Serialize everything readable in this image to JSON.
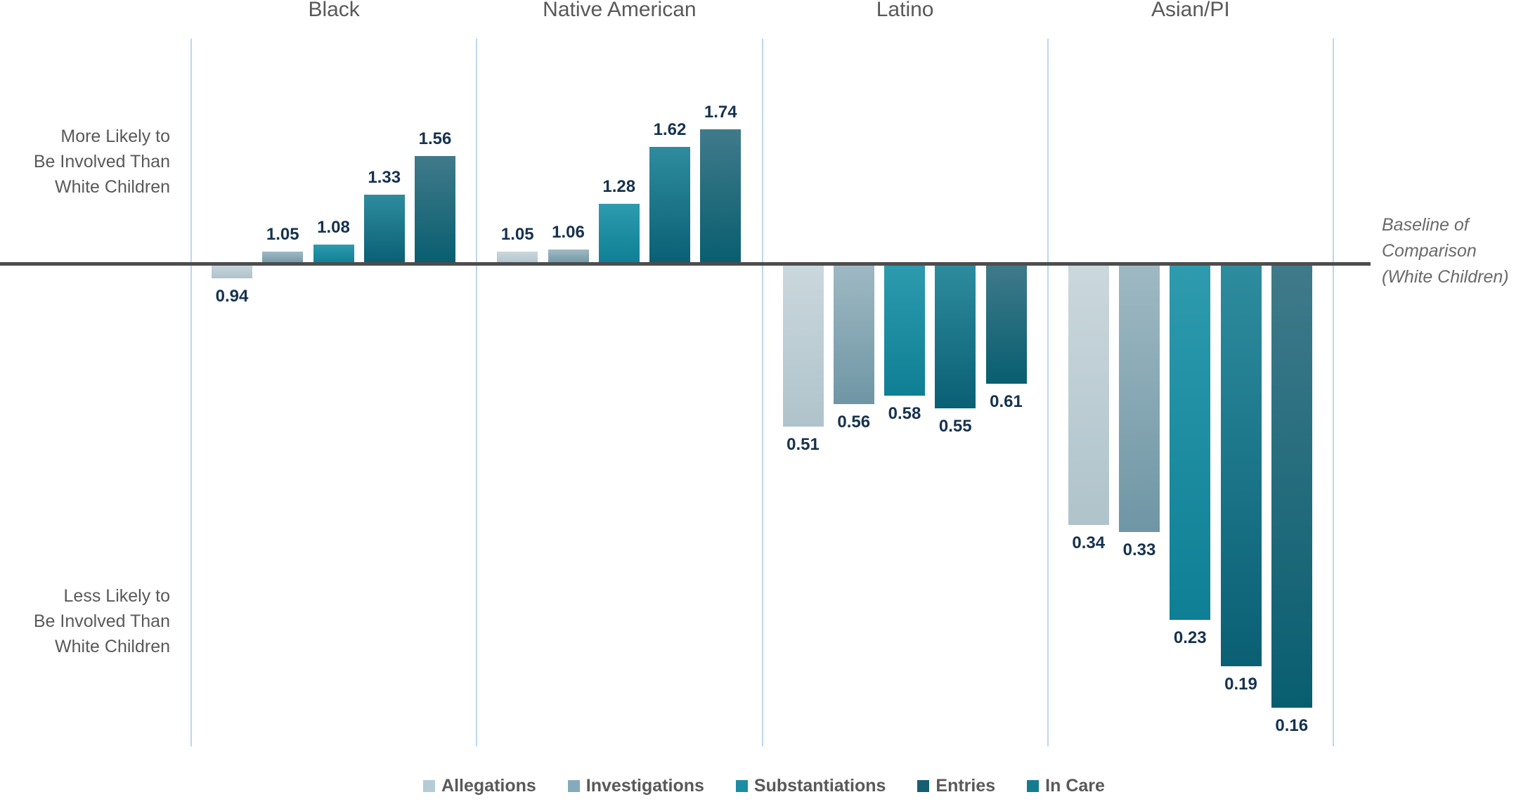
{
  "chart_data": {
    "type": "bar",
    "scale": "log-ratio",
    "baseline_value": 1.0,
    "groups": [
      "Black",
      "Native American",
      "Latino",
      "Asian/PI"
    ],
    "series": [
      {
        "name": "Allegations",
        "values": [
          0.94,
          1.05,
          0.51,
          0.34
        ],
        "gradient_top": "#CBD8DD",
        "gradient_bottom": "#AFC3CB",
        "legend_color": "#B3CCD5"
      },
      {
        "name": "Investigations",
        "values": [
          1.05,
          1.06,
          0.56,
          0.33
        ],
        "gradient_top": "#9FB9C3",
        "gradient_bottom": "#6F96A5",
        "legend_color": "#84ABB9"
      },
      {
        "name": "Substantiations",
        "values": [
          1.08,
          1.28,
          0.58,
          0.23
        ],
        "gradient_top": "#2E9BAE",
        "gradient_bottom": "#0E7F95",
        "legend_color": "#1C8CA3"
      },
      {
        "name": "Entries",
        "values": [
          1.33,
          1.62,
          0.55,
          0.19
        ],
        "gradient_top": "#2E8C9F",
        "gradient_bottom": "#0A5F73",
        "legend_color": "#175E72"
      },
      {
        "name": "In Care",
        "values": [
          1.56,
          1.74,
          0.61,
          0.16
        ],
        "gradient_top": "#407A8A",
        "gradient_bottom": "#085E70",
        "legend_color": "#147C91"
      }
    ],
    "value_label_decimals": 2,
    "legend_position": "bottom",
    "grid": "vertical-panel-separators",
    "annotations": {
      "more_likely": [
        "More Likely to",
        "Be Involved Than",
        "White Children"
      ],
      "less_likely": [
        "Less Likely to",
        "Be Involved Than",
        "White Children"
      ],
      "baseline_label": [
        "Baseline of",
        "Comparison",
        "(White Children)"
      ]
    }
  },
  "colors": {
    "value_label": "#16324F",
    "axis_text": "#595959",
    "annotation_text": "#6A6A6A",
    "baseline_line": "#4D4D4D",
    "gridline": "#BDD7EE"
  }
}
